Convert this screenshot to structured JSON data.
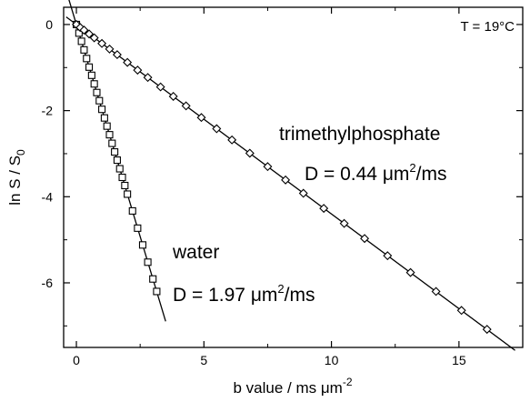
{
  "chart_data": {
    "type": "scatter",
    "title": "",
    "xlabel_main": "b value  /  ms ",
    "xlabel_unit": "μm",
    "xlabel_exp": "-2",
    "ylabel_main": "ln S / S",
    "ylabel_sub": "0",
    "xlim": [
      -0.5,
      17.5
    ],
    "ylim": [
      -7.5,
      0.4
    ],
    "xticks": [
      0,
      5,
      10,
      15
    ],
    "xtick_labels": [
      "0",
      "5",
      "10",
      "15"
    ],
    "yticks": [
      0,
      -2,
      -4,
      -6
    ],
    "ytick_labels": [
      "0",
      "-2",
      "-4",
      "-6"
    ],
    "x_minor_step": 2.5,
    "y_minor_step": 1,
    "grid": false,
    "series": [
      {
        "name": "water",
        "marker": "square",
        "diffusion_label_prefix": "D = 1.97 ",
        "diffusion_unit": "μm",
        "diffusion_exp": "2",
        "diffusion_suffix": "/ms",
        "D": 1.97,
        "fit_range": [
          -0.4,
          3.5
        ],
        "x": [
          0,
          0.1,
          0.2,
          0.3,
          0.4,
          0.5,
          0.6,
          0.7,
          0.8,
          0.9,
          1.0,
          1.1,
          1.2,
          1.3,
          1.4,
          1.5,
          1.6,
          1.7,
          1.8,
          1.9,
          2.0,
          2.2,
          2.4,
          2.6,
          2.8,
          3.0,
          3.15
        ],
        "y": [
          0,
          -0.2,
          -0.39,
          -0.59,
          -0.79,
          -0.99,
          -1.18,
          -1.38,
          -1.58,
          -1.77,
          -1.97,
          -2.17,
          -2.36,
          -2.56,
          -2.76,
          -2.96,
          -3.15,
          -3.35,
          -3.55,
          -3.74,
          -3.94,
          -4.33,
          -4.73,
          -5.12,
          -5.52,
          -5.91,
          -6.2
        ]
      },
      {
        "name": "trimethylphosphate",
        "marker": "diamond",
        "diffusion_label_prefix": "D = 0.44 ",
        "diffusion_unit": "μm",
        "diffusion_exp": "2",
        "diffusion_suffix": "/ms",
        "D": 0.44,
        "fit_range": [
          -0.4,
          17.2
        ],
        "x": [
          0,
          0.15,
          0.3,
          0.5,
          0.7,
          1.0,
          1.3,
          1.6,
          2.0,
          2.4,
          2.8,
          3.3,
          3.8,
          4.3,
          4.9,
          5.5,
          6.1,
          6.8,
          7.5,
          8.2,
          8.9,
          9.7,
          10.5,
          11.3,
          12.2,
          13.1,
          14.1,
          15.1,
          16.1
        ],
        "y": [
          0,
          -0.07,
          -0.13,
          -0.22,
          -0.31,
          -0.44,
          -0.57,
          -0.7,
          -0.88,
          -1.06,
          -1.23,
          -1.45,
          -1.67,
          -1.89,
          -2.16,
          -2.42,
          -2.68,
          -2.99,
          -3.3,
          -3.61,
          -3.92,
          -4.27,
          -4.62,
          -4.97,
          -5.37,
          -5.76,
          -6.2,
          -6.64,
          -7.08
        ]
      }
    ],
    "annotations": {
      "temperature": "T = 19°C"
    }
  }
}
